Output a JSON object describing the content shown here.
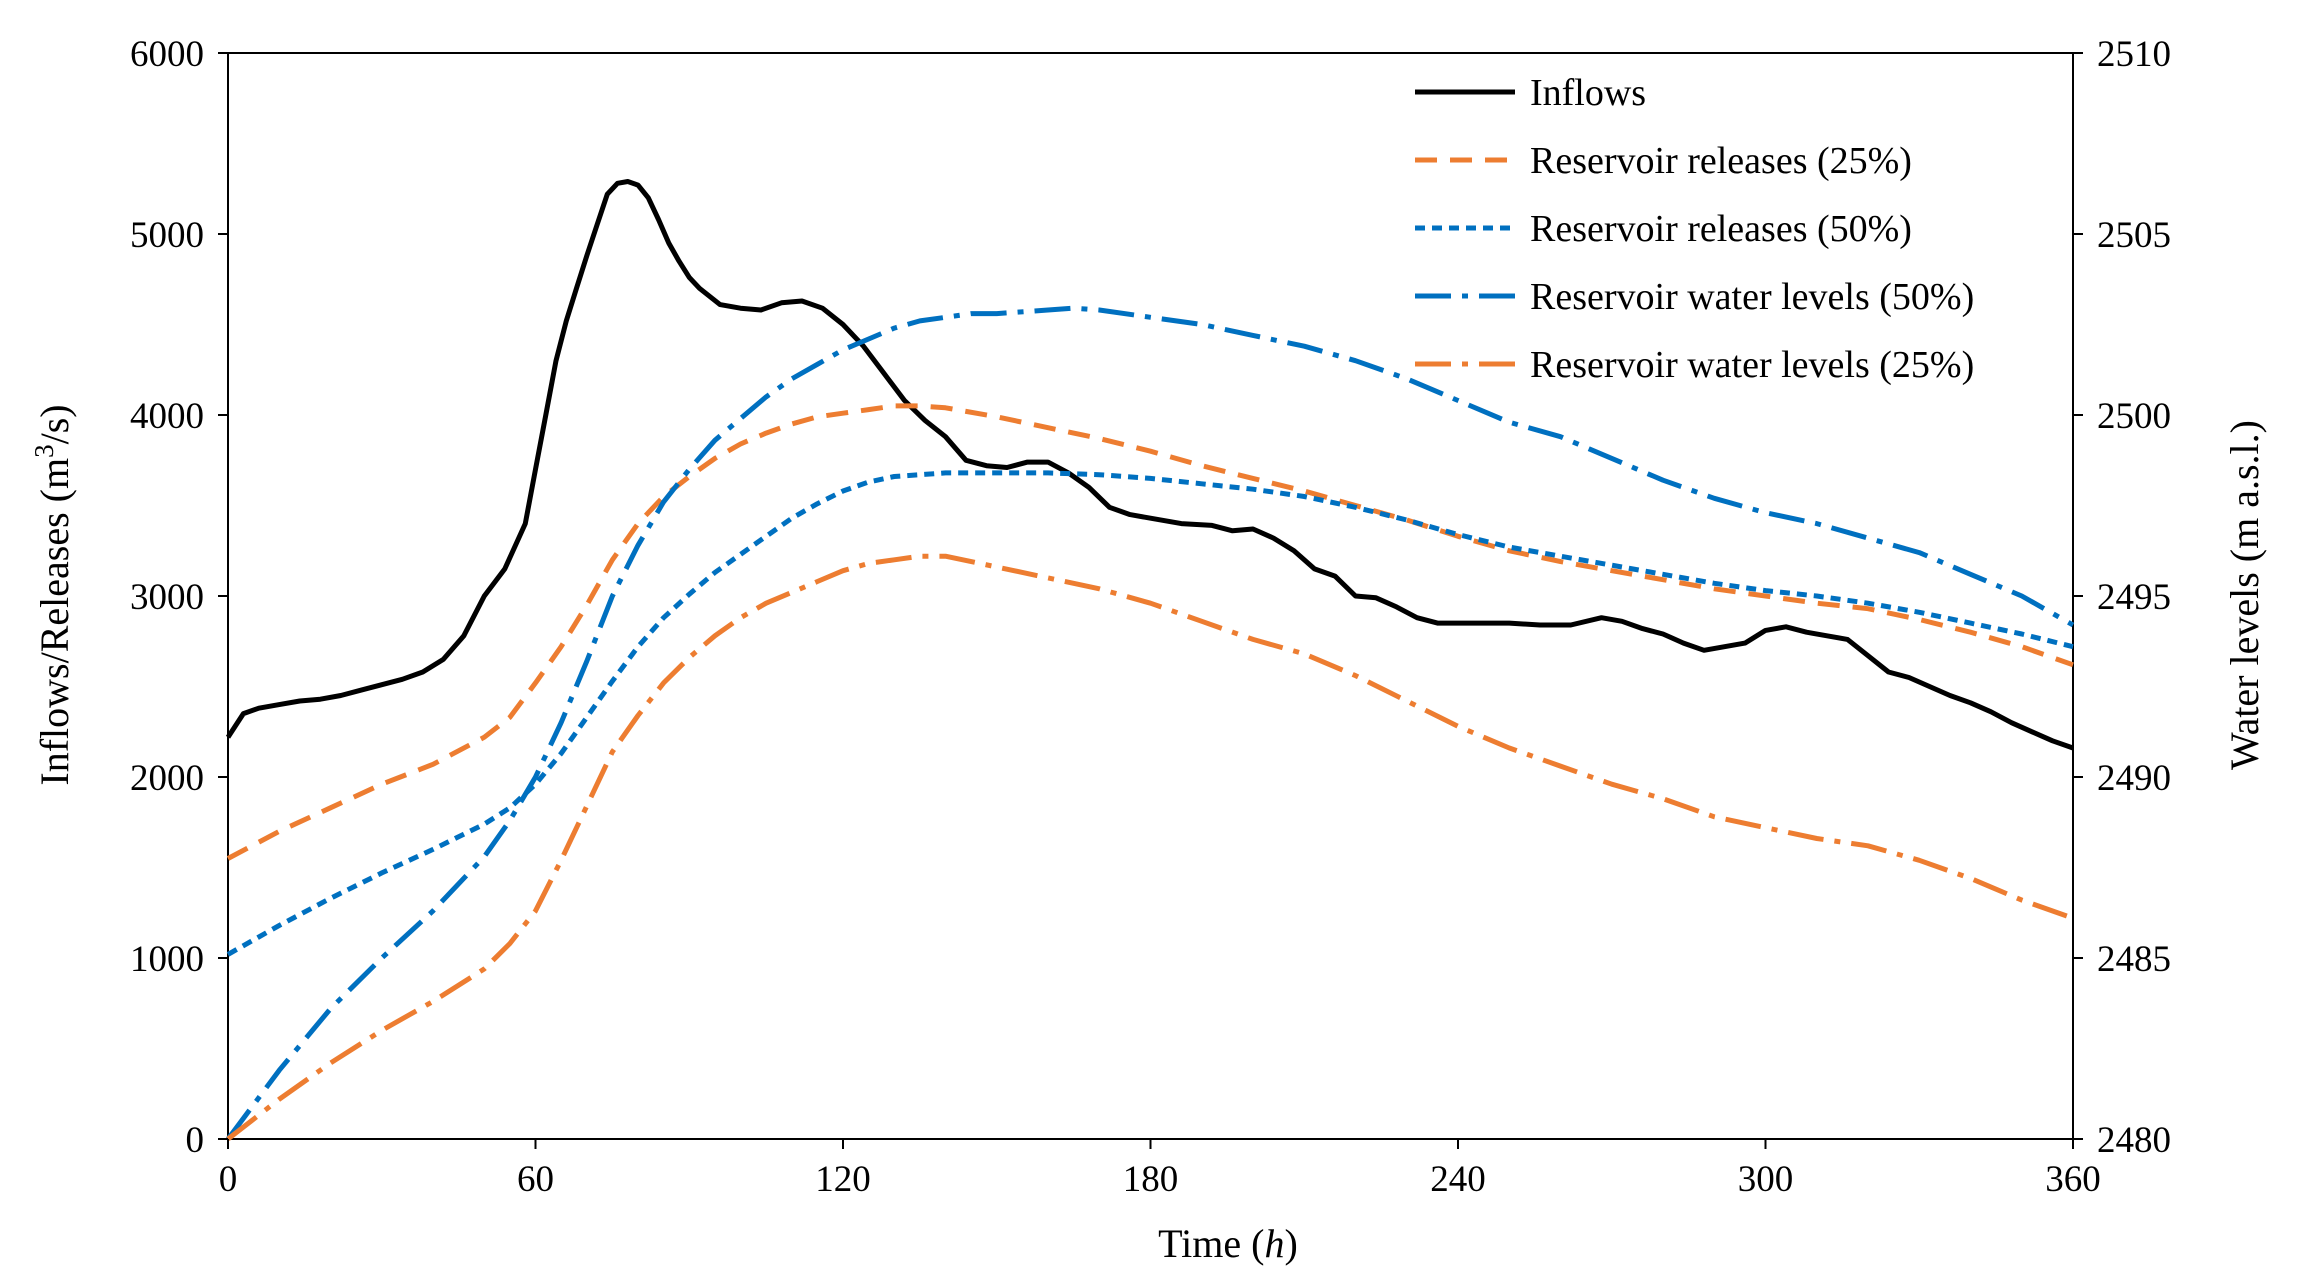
{
  "chart_data": {
    "type": "line",
    "title": "",
    "xlabel": "Time",
    "xlabel_unit": "h",
    "ylabel_left_pre": "Inflows/Releases (m",
    "ylabel_left_sup": "3",
    "ylabel_left_post": "/s)",
    "ylabel_right": "Water levels (m a.s.l.)",
    "xlim": [
      0,
      360
    ],
    "ylim_left": [
      0,
      6000
    ],
    "ylim_right": [
      2480,
      2510
    ],
    "x_ticks": [
      0,
      60,
      120,
      180,
      240,
      300,
      360
    ],
    "y_left_ticks": [
      0,
      1000,
      2000,
      3000,
      4000,
      5000,
      6000
    ],
    "y_right_ticks": [
      2480,
      2485,
      2490,
      2495,
      2500,
      2505,
      2510
    ],
    "grid": false,
    "legend_position": "top-right",
    "series": [
      {
        "name": "Inflows",
        "axis": "left",
        "color": "#000000",
        "style": "solid",
        "x": [
          0,
          3,
          6,
          10,
          14,
          18,
          22,
          26,
          30,
          34,
          38,
          42,
          46,
          50,
          54,
          58,
          60,
          62,
          64,
          66,
          68,
          70,
          72,
          74,
          76,
          78,
          80,
          82,
          84,
          86,
          88,
          90,
          92,
          96,
          100,
          104,
          108,
          112,
          116,
          120,
          124,
          128,
          132,
          136,
          140,
          144,
          148,
          152,
          156,
          160,
          164,
          168,
          172,
          176,
          180,
          186,
          192,
          196,
          200,
          204,
          208,
          212,
          216,
          220,
          224,
          228,
          232,
          236,
          240,
          244,
          250,
          256,
          262,
          268,
          272,
          276,
          280,
          284,
          288,
          292,
          296,
          300,
          304,
          308,
          312,
          316,
          320,
          324,
          328,
          332,
          336,
          340,
          344,
          348,
          352,
          356,
          360
        ],
        "values": [
          2220,
          2350,
          2380,
          2400,
          2420,
          2430,
          2450,
          2480,
          2510,
          2540,
          2580,
          2650,
          2780,
          3000,
          3150,
          3400,
          3700,
          4000,
          4300,
          4520,
          4700,
          4880,
          5050,
          5220,
          5280,
          5290,
          5270,
          5200,
          5080,
          4950,
          4850,
          4760,
          4700,
          4610,
          4590,
          4580,
          4620,
          4630,
          4590,
          4500,
          4380,
          4230,
          4080,
          3970,
          3880,
          3750,
          3720,
          3710,
          3740,
          3740,
          3680,
          3600,
          3490,
          3450,
          3430,
          3400,
          3390,
          3360,
          3370,
          3320,
          3250,
          3150,
          3110,
          3000,
          2990,
          2940,
          2880,
          2850,
          2850,
          2850,
          2850,
          2840,
          2840,
          2880,
          2860,
          2820,
          2790,
          2740,
          2700,
          2720,
          2740,
          2810,
          2830,
          2800,
          2780,
          2760,
          2670,
          2580,
          2550,
          2500,
          2450,
          2410,
          2360,
          2300,
          2250,
          2200,
          2160
        ]
      },
      {
        "name": "Reservoir releases (25%)",
        "axis": "left",
        "color": "#ED7D31",
        "style": "dashed",
        "x": [
          0,
          10,
          20,
          30,
          40,
          50,
          55,
          60,
          65,
          70,
          75,
          80,
          85,
          90,
          95,
          100,
          105,
          110,
          115,
          120,
          125,
          130,
          135,
          140,
          150,
          160,
          170,
          180,
          190,
          200,
          210,
          220,
          230,
          240,
          250,
          260,
          270,
          280,
          290,
          300,
          310,
          320,
          330,
          340,
          350,
          360
        ],
        "values": [
          1550,
          1700,
          1830,
          1960,
          2070,
          2220,
          2330,
          2520,
          2720,
          2950,
          3200,
          3400,
          3550,
          3660,
          3760,
          3840,
          3900,
          3950,
          3990,
          4010,
          4030,
          4050,
          4050,
          4040,
          3990,
          3930,
          3870,
          3800,
          3720,
          3650,
          3580,
          3500,
          3420,
          3330,
          3250,
          3190,
          3140,
          3090,
          3040,
          3000,
          2960,
          2930,
          2870,
          2800,
          2720,
          2620
        ]
      },
      {
        "name": "Reservoir releases (50%)",
        "axis": "left",
        "color": "#0070C0",
        "style": "dotted",
        "x": [
          0,
          10,
          20,
          30,
          40,
          50,
          55,
          60,
          65,
          70,
          75,
          80,
          85,
          90,
          95,
          100,
          105,
          110,
          115,
          120,
          125,
          130,
          135,
          140,
          145,
          150,
          160,
          170,
          180,
          190,
          200,
          210,
          220,
          230,
          240,
          250,
          260,
          270,
          280,
          290,
          300,
          310,
          320,
          330,
          340,
          350,
          360
        ],
        "values": [
          1020,
          1180,
          1330,
          1470,
          1600,
          1740,
          1830,
          1960,
          2130,
          2330,
          2530,
          2720,
          2880,
          3010,
          3130,
          3230,
          3330,
          3430,
          3510,
          3580,
          3630,
          3660,
          3670,
          3680,
          3680,
          3680,
          3680,
          3670,
          3650,
          3620,
          3590,
          3550,
          3490,
          3420,
          3340,
          3270,
          3220,
          3170,
          3120,
          3070,
          3030,
          3000,
          2960,
          2910,
          2850,
          2790,
          2720
        ]
      },
      {
        "name": "Reservoir water levels (50%)",
        "axis": "right",
        "color": "#0070C0",
        "style": "dashdot",
        "x": [
          0,
          10,
          20,
          30,
          40,
          50,
          55,
          60,
          65,
          70,
          75,
          80,
          85,
          90,
          95,
          100,
          105,
          110,
          115,
          120,
          125,
          130,
          135,
          140,
          145,
          150,
          160,
          165,
          170,
          180,
          190,
          200,
          210,
          220,
          230,
          240,
          250,
          260,
          270,
          280,
          290,
          300,
          310,
          320,
          330,
          340,
          350,
          360
        ],
        "values": [
          2480,
          2481.9,
          2483.6,
          2485,
          2486.3,
          2487.8,
          2488.8,
          2490,
          2491.5,
          2493.2,
          2495,
          2496.4,
          2497.6,
          2498.5,
          2499.3,
          2499.9,
          2500.5,
          2501,
          2501.4,
          2501.8,
          2502.1,
          2502.4,
          2502.6,
          2502.7,
          2502.8,
          2502.8,
          2502.9,
          2502.95,
          2502.9,
          2502.7,
          2502.5,
          2502.2,
          2501.9,
          2501.5,
          2501,
          2500.4,
          2499.8,
          2499.4,
          2498.8,
          2498.2,
          2497.7,
          2497.3,
          2497,
          2496.6,
          2496.2,
          2495.6,
          2495,
          2494.2
        ]
      },
      {
        "name": "Reservoir water levels (25%)",
        "axis": "right",
        "color": "#ED7D31",
        "style": "dashdot",
        "x": [
          0,
          10,
          20,
          30,
          40,
          50,
          55,
          60,
          65,
          70,
          75,
          80,
          85,
          90,
          95,
          100,
          105,
          110,
          115,
          120,
          125,
          130,
          135,
          140,
          150,
          160,
          170,
          180,
          190,
          200,
          210,
          220,
          230,
          240,
          250,
          260,
          270,
          280,
          290,
          300,
          310,
          320,
          330,
          340,
          350,
          360
        ],
        "values": [
          2480,
          2481.1,
          2482.1,
          2483,
          2483.8,
          2484.7,
          2485.4,
          2486.3,
          2487.7,
          2489.2,
          2490.7,
          2491.7,
          2492.6,
          2493.3,
          2493.9,
          2494.4,
          2494.8,
          2495.1,
          2495.4,
          2495.7,
          2495.9,
          2496,
          2496.1,
          2496.1,
          2495.8,
          2495.5,
          2495.2,
          2494.8,
          2494.3,
          2493.8,
          2493.4,
          2492.8,
          2492.1,
          2491.4,
          2490.8,
          2490.3,
          2489.8,
          2489.4,
          2488.9,
          2488.6,
          2488.3,
          2488.1,
          2487.7,
          2487.2,
          2486.6,
          2486.1
        ]
      }
    ]
  }
}
